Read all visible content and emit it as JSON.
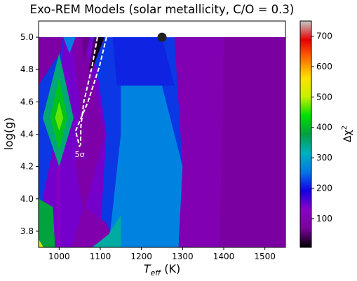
{
  "chart_data": {
    "type": "heatmap",
    "title": "Exo-REM Models (solar metallicity, C/O = 0.3)",
    "xlabel": "T",
    "xlabel_sub": "eff",
    "xlabel_unit": " (K)",
    "ylabel": "log(g)",
    "xlim": [
      950,
      1550
    ],
    "ylim": [
      3.7,
      5.1
    ],
    "xticks": [
      1000,
      1100,
      1200,
      1300,
      1400,
      1500
    ],
    "yticks": [
      3.8,
      4.0,
      4.2,
      4.4,
      4.6,
      4.8,
      5.0
    ],
    "colorbar": {
      "label": "Δχ",
      "label_sup": "2",
      "range": [
        5,
        750
      ],
      "ticks": [
        100,
        200,
        300,
        400,
        500,
        600,
        700
      ],
      "colormap": [
        "#000000",
        "#7a00a0",
        "#8a00c8",
        "#1400e0",
        "#0078e8",
        "#00b0c0",
        "#00a040",
        "#00e000",
        "#c8f000",
        "#ffe000",
        "#ff7000",
        "#e40000",
        "#c8c8c8"
      ]
    },
    "best_fit": {
      "x": 1250,
      "y": 5.0
    },
    "contour": {
      "label": "5σ",
      "label_pos": {
        "x": 1050,
        "y": 4.26
      },
      "inner": [
        [
          1093,
          5.0
        ],
        [
          1080,
          4.82
        ],
        [
          1060,
          4.6
        ],
        [
          1053,
          4.45
        ],
        [
          1052,
          4.33
        ]
      ],
      "outer": [
        [
          1115,
          5.0
        ],
        [
          1098,
          4.82
        ],
        [
          1070,
          4.6
        ],
        [
          1040,
          4.42
        ],
        [
          1050,
          4.32
        ]
      ]
    },
    "regions": [
      {
        "name": "base",
        "value": 220,
        "points": [
          [
            950,
            3.7
          ],
          [
            1550,
            3.7
          ],
          [
            1550,
            5.0
          ],
          [
            950,
            5.0
          ]
        ]
      },
      {
        "name": "teal-center",
        "value": 265,
        "points": [
          [
            1120,
            3.7
          ],
          [
            1310,
            3.7
          ],
          [
            1300,
            4.2
          ],
          [
            1250,
            4.7
          ],
          [
            1200,
            5.0
          ],
          [
            1150,
            5.0
          ],
          [
            1150,
            4.4
          ]
        ]
      },
      {
        "name": "upper-center-blue",
        "value": 210,
        "points": [
          [
            1140,
            4.7
          ],
          [
            1280,
            4.7
          ],
          [
            1250,
            5.0
          ],
          [
            1130,
            5.0
          ]
        ]
      },
      {
        "name": "blue-left-column",
        "value": 140,
        "points": [
          [
            985,
            3.7
          ],
          [
            1100,
            3.7
          ],
          [
            1105,
            4.0
          ],
          [
            1115,
            4.4
          ],
          [
            1080,
            5.0
          ],
          [
            1010,
            5.0
          ],
          [
            1000,
            4.5
          ],
          [
            960,
            4.0
          ]
        ]
      },
      {
        "name": "purple-right",
        "value": 95,
        "points": [
          [
            1290,
            3.7
          ],
          [
            1550,
            3.7
          ],
          [
            1550,
            5.0
          ],
          [
            1280,
            5.0
          ],
          [
            1300,
            4.2
          ]
        ]
      },
      {
        "name": "purple-right-deep",
        "value": 70,
        "points": [
          [
            1390,
            3.7
          ],
          [
            1550,
            3.7
          ],
          [
            1550,
            5.0
          ],
          [
            1400,
            5.0
          ]
        ]
      },
      {
        "name": "left-purple-wedge",
        "value": 75,
        "points": [
          [
            950,
            4.7
          ],
          [
            1000,
            4.9
          ],
          [
            950,
            5.0
          ]
        ]
      },
      {
        "name": "left-purple-top",
        "value": 75,
        "points": [
          [
            950,
            5.0
          ],
          [
            1010,
            5.0
          ],
          [
            1000,
            4.85
          ]
        ]
      },
      {
        "name": "purple-band-upper",
        "value": 80,
        "points": [
          [
            1030,
            5.0
          ],
          [
            1060,
            5.0
          ],
          [
            1110,
            4.4
          ],
          [
            1080,
            4.1
          ],
          [
            1060,
            3.9
          ],
          [
            1040,
            4.2
          ],
          [
            1050,
            4.6
          ]
        ]
      },
      {
        "name": "purple-bottom-center",
        "value": 85,
        "points": [
          [
            1030,
            3.7
          ],
          [
            1140,
            3.7
          ],
          [
            1115,
            3.85
          ],
          [
            1060,
            3.95
          ]
        ]
      },
      {
        "name": "magenta-strip-top",
        "value": 60,
        "points": [
          [
            1055,
            5.0
          ],
          [
            1075,
            5.0
          ],
          [
            1060,
            4.85
          ]
        ]
      },
      {
        "name": "green-diamond-outer",
        "value": 350,
        "points": [
          [
            1000,
            4.9
          ],
          [
            1035,
            4.5
          ],
          [
            1000,
            4.2
          ],
          [
            960,
            4.5
          ]
        ]
      },
      {
        "name": "green-diamond-mid",
        "value": 410,
        "points": [
          [
            1000,
            4.75
          ],
          [
            1020,
            4.5
          ],
          [
            1000,
            4.3
          ],
          [
            978,
            4.5
          ]
        ]
      },
      {
        "name": "green-diamond-core",
        "value": 470,
        "points": [
          [
            1000,
            4.6
          ],
          [
            1010,
            4.5
          ],
          [
            1000,
            4.42
          ],
          [
            990,
            4.5
          ]
        ]
      },
      {
        "name": "cyan-top-left",
        "value": 260,
        "points": [
          [
            1010,
            5.0
          ],
          [
            1040,
            5.0
          ],
          [
            1025,
            4.9
          ]
        ]
      },
      {
        "name": "green-bottom-left",
        "value": 380,
        "points": [
          [
            950,
            3.7
          ],
          [
            990,
            3.7
          ],
          [
            985,
            3.95
          ],
          [
            950,
            4.0
          ]
        ]
      },
      {
        "name": "yellow-corner",
        "value": 520,
        "points": [
          [
            950,
            3.7
          ],
          [
            962,
            3.7
          ],
          [
            950,
            3.75
          ]
        ]
      },
      {
        "name": "dark-blue-vertical",
        "value": 120,
        "points": [
          [
            994,
            3.7
          ],
          [
            1002,
            3.7
          ],
          [
            1002,
            4.2
          ],
          [
            994,
            4.2
          ]
        ]
      },
      {
        "name": "green-bottom-mid",
        "value": 330,
        "points": [
          [
            1080,
            3.7
          ],
          [
            1150,
            3.7
          ],
          [
            1150,
            3.9
          ],
          [
            1120,
            3.78
          ]
        ]
      },
      {
        "name": "dark-valley",
        "value": 15,
        "points": [
          [
            1095,
            5.0
          ],
          [
            1110,
            5.0
          ],
          [
            1080,
            4.8
          ],
          [
            1073,
            4.8
          ]
        ]
      },
      {
        "name": "dark-valley-edge",
        "value": 45,
        "points": [
          [
            1085,
            5.0
          ],
          [
            1095,
            5.0
          ],
          [
            1070,
            4.78
          ]
        ]
      }
    ]
  }
}
